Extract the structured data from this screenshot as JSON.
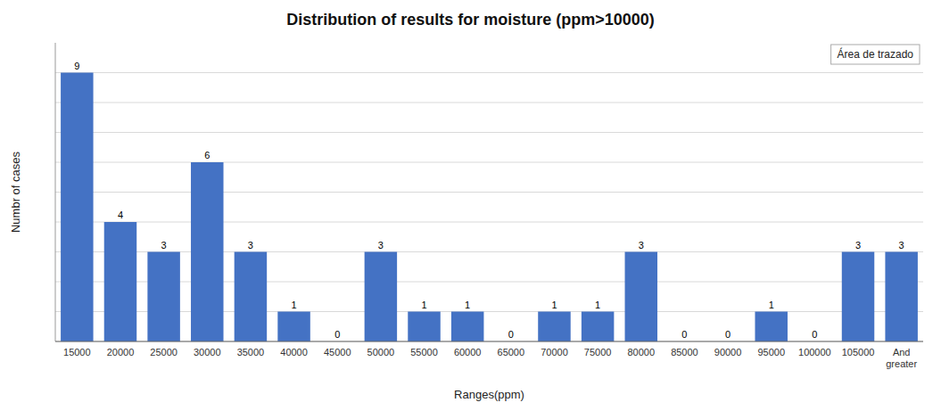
{
  "chart_data": {
    "type": "bar",
    "title": "Distribution of results  for moisture (ppm>10000)",
    "x_label": "Ranges(ppm)",
    "y_label": "Numbr of cases",
    "categories": [
      "15000",
      "20000",
      "25000",
      "30000",
      "35000",
      "40000",
      "45000",
      "50000",
      "55000",
      "60000",
      "65000",
      "70000",
      "75000",
      "80000",
      "85000",
      "90000",
      "95000",
      "100000",
      "105000",
      "And\ngreater"
    ],
    "series": [
      {
        "name": "Área de trazado",
        "color": "#4472C4",
        "values": [
          9,
          4,
          3,
          6,
          3,
          1,
          0,
          3,
          1,
          1,
          0,
          1,
          1,
          3,
          0,
          0,
          1,
          0,
          3,
          3
        ]
      }
    ],
    "ylim": [
      0,
      10
    ],
    "yticks": [
      0,
      1,
      2,
      3,
      4,
      5,
      6,
      7,
      8,
      9
    ],
    "grid": true,
    "data_labels": true,
    "tick_labels": "x",
    "legend": "upper right"
  }
}
